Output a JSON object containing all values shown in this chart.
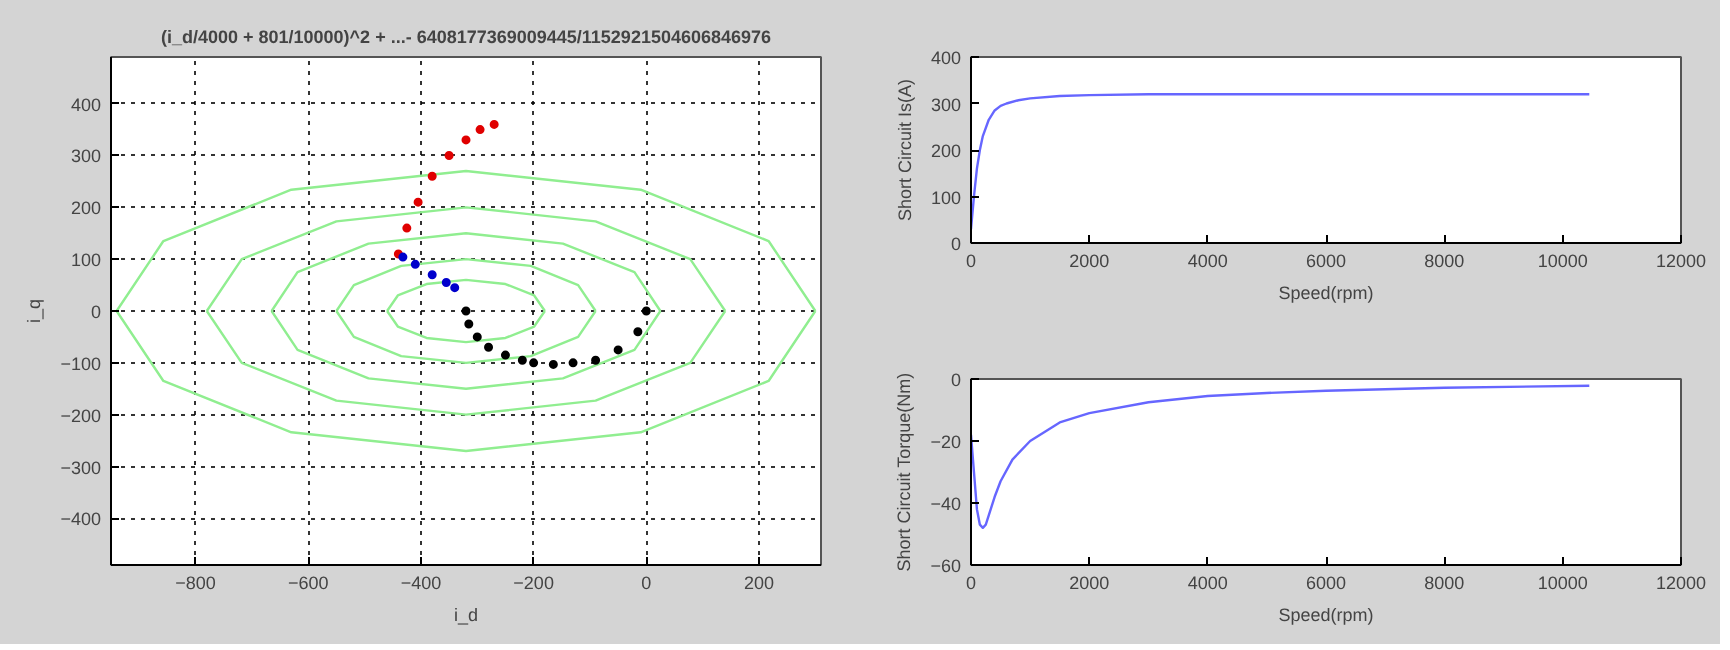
{
  "chart_data": [
    {
      "type": "scatter",
      "title": "(i_d/4000 + 801/10000)^2 + ...- 6408177369009445/1152921504606846976",
      "xlabel": "i_d",
      "ylabel": "i_q",
      "xlim": [
        -950,
        310
      ],
      "ylim": [
        -490,
        490
      ],
      "xticks": [
        -800,
        -600,
        -400,
        -200,
        0,
        200
      ],
      "yticks": [
        -400,
        -300,
        -200,
        -100,
        0,
        100,
        200,
        300,
        400
      ],
      "grid": true,
      "series": [
        {
          "type": "line",
          "color": "#90ee90",
          "x": [
            -460,
            -441,
            -390,
            -320,
            -250,
            -199,
            -180
          ],
          "values": [
            0,
            30,
            52,
            60,
            52,
            30,
            0
          ]
        },
        {
          "type": "line",
          "color": "#90ee90",
          "x": [
            -460,
            -441,
            -390,
            -320,
            -250,
            -199,
            -180
          ],
          "values": [
            0,
            -30,
            -52,
            -60,
            -52,
            -30,
            0
          ]
        },
        {
          "type": "line",
          "color": "#90ee90",
          "x": [
            -550,
            -519,
            -435,
            -320,
            -205,
            -121,
            -90
          ],
          "values": [
            0,
            50,
            87,
            100,
            87,
            50,
            0
          ]
        },
        {
          "type": "line",
          "color": "#90ee90",
          "x": [
            -550,
            -519,
            -435,
            -320,
            -205,
            -121,
            -90
          ],
          "values": [
            0,
            -50,
            -87,
            -100,
            -87,
            -50,
            0
          ]
        },
        {
          "type": "line",
          "color": "#90ee90",
          "x": [
            -665,
            -619,
            -493,
            -320,
            -148,
            -21,
            25
          ],
          "values": [
            0,
            75,
            130,
            150,
            130,
            75,
            0
          ]
        },
        {
          "type": "line",
          "color": "#90ee90",
          "x": [
            -665,
            -619,
            -493,
            -320,
            -148,
            -21,
            25
          ],
          "values": [
            0,
            -75,
            -130,
            -150,
            -130,
            -75,
            0
          ]
        },
        {
          "type": "line",
          "color": "#90ee90",
          "x": [
            -780,
            -718,
            -550,
            -320,
            -90,
            78,
            140
          ],
          "values": [
            0,
            100,
            173,
            200,
            173,
            100,
            0
          ]
        },
        {
          "type": "line",
          "color": "#90ee90",
          "x": [
            -780,
            -718,
            -550,
            -320,
            -90,
            78,
            140
          ],
          "values": [
            0,
            -100,
            -173,
            -200,
            -173,
            -100,
            0
          ]
        },
        {
          "type": "line",
          "color": "#90ee90",
          "x": [
            -940,
            -857,
            -630,
            -320,
            -10,
            217,
            300
          ],
          "values": [
            0,
            135,
            234,
            270,
            234,
            135,
            0
          ]
        },
        {
          "type": "line",
          "color": "#90ee90",
          "x": [
            -940,
            -857,
            -630,
            -320,
            -10,
            217,
            300
          ],
          "values": [
            0,
            -135,
            -234,
            -270,
            -234,
            -135,
            0
          ]
        },
        {
          "type": "scatter",
          "marker": "circle",
          "color": "#e00000",
          "x": [
            -440,
            -425,
            -405,
            -380,
            -350,
            -320,
            -295,
            -270
          ],
          "values": [
            110,
            160,
            210,
            260,
            300,
            330,
            350,
            360
          ]
        },
        {
          "type": "scatter",
          "marker": "circle",
          "color": "#0000cc",
          "x": [
            -432,
            -410,
            -380,
            -355,
            -340
          ],
          "values": [
            104,
            90,
            70,
            55,
            45
          ]
        },
        {
          "type": "scatter",
          "marker": "circle",
          "color": "#000000",
          "x": [
            -320,
            -315,
            -300,
            -280,
            -250,
            -220,
            -200,
            -165,
            -130,
            -90,
            -50,
            -15,
            0
          ],
          "values": [
            0,
            -25,
            -50,
            -70,
            -85,
            -95,
            -100,
            -103,
            -100,
            -95,
            -75,
            -40,
            0
          ]
        }
      ]
    },
    {
      "type": "line",
      "xlabel": "Speed(rpm)",
      "ylabel": "Short Circuit Is(A)",
      "xlim": [
        0,
        12000
      ],
      "ylim": [
        0,
        400
      ],
      "xticks": [
        0,
        2000,
        4000,
        6000,
        8000,
        10000,
        12000
      ],
      "yticks": [
        0,
        100,
        200,
        300,
        400
      ],
      "series": [
        {
          "color": "#6666ff",
          "x": [
            0,
            50,
            100,
            150,
            200,
            300,
            400,
            500,
            600,
            800,
            1000,
            1500,
            2000,
            3000,
            5000,
            8000,
            10450
          ],
          "values": [
            30,
            100,
            160,
            200,
            230,
            265,
            285,
            295,
            300,
            307,
            311,
            316,
            318,
            320,
            320,
            320,
            320
          ]
        }
      ]
    },
    {
      "type": "line",
      "xlabel": "Speed(rpm)",
      "ylabel": "Short Circuit Torque(Nm)",
      "xlim": [
        0,
        12000
      ],
      "ylim": [
        -60,
        0
      ],
      "xticks": [
        0,
        2000,
        4000,
        6000,
        8000,
        10000,
        12000
      ],
      "yticks": [
        -60,
        -40,
        -20,
        0
      ],
      "series": [
        {
          "color": "#6666ff",
          "x": [
            0,
            50,
            100,
            150,
            200,
            250,
            300,
            400,
            500,
            700,
            1000,
            1500,
            2000,
            3000,
            4000,
            5000,
            6000,
            8000,
            10450
          ],
          "values": [
            -18,
            -30,
            -42,
            -47,
            -48,
            -47,
            -44,
            -38,
            -33,
            -26,
            -20,
            -14,
            -11,
            -7.5,
            -5.5,
            -4.5,
            -3.8,
            -2.8,
            -2.2
          ]
        }
      ]
    }
  ]
}
